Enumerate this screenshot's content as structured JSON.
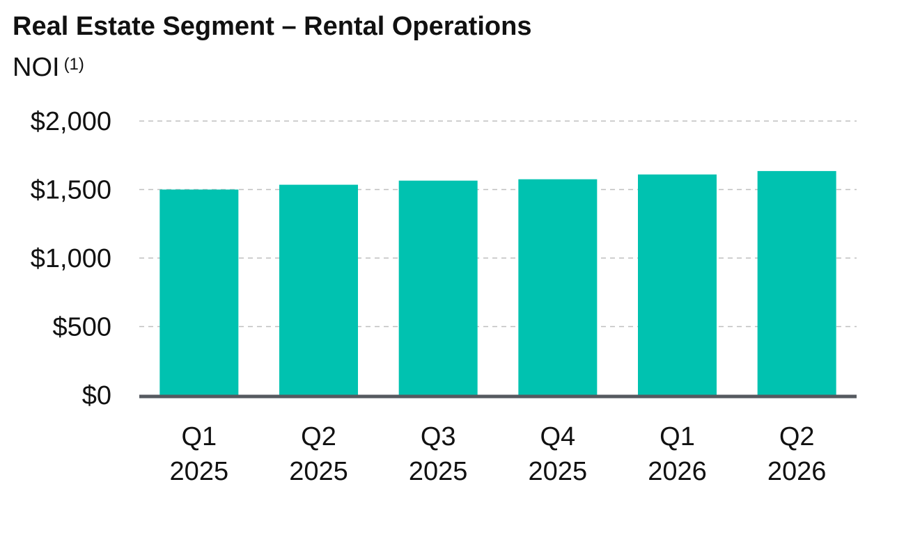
{
  "title": "Real Estate Segment – Rental Operations",
  "subtitle": "NOI",
  "footnote_marker": "(1)",
  "colors": {
    "bar": "#00c2b0",
    "axis": "#555a60",
    "grid": "#bfbfbf"
  },
  "chart_data": {
    "type": "bar",
    "title": "Real Estate Segment – Rental Operations",
    "subtitle": "NOI (1)",
    "categories": [
      [
        "Q1",
        "2025"
      ],
      [
        "Q2",
        "2025"
      ],
      [
        "Q3",
        "2025"
      ],
      [
        "Q4",
        "2025"
      ],
      [
        "Q1",
        "2026"
      ],
      [
        "Q2",
        "2026"
      ]
    ],
    "values": [
      1500,
      1535,
      1565,
      1575,
      1610,
      1635
    ],
    "ylim": [
      0,
      2000
    ],
    "yticks": [
      0,
      500,
      1000,
      1500,
      2000
    ],
    "ytick_labels": [
      "$0",
      "$500",
      "$1,000",
      "$1,500",
      "$2,000"
    ],
    "grid": "horizontal-dashed",
    "legend": "none"
  }
}
